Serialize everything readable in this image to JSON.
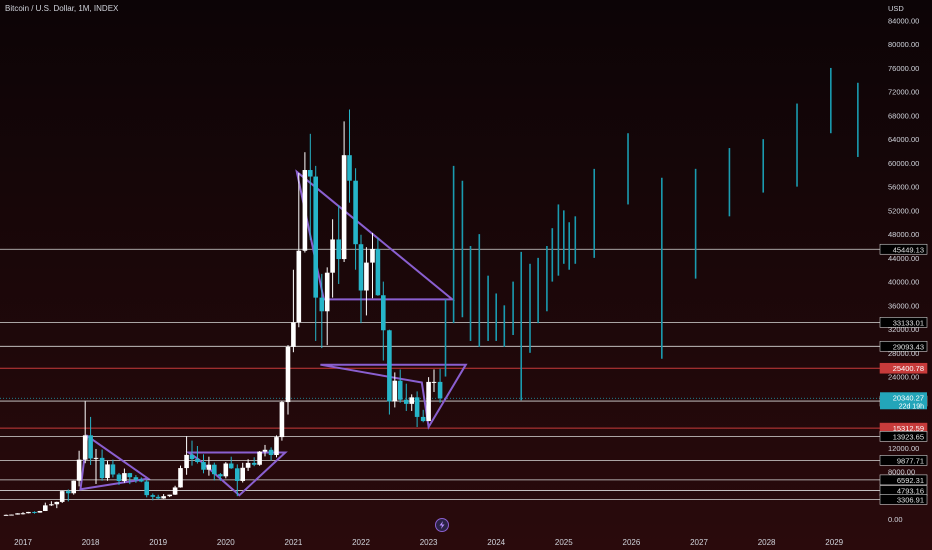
{
  "header": {
    "title": "Bitcoin / U.S. Dollar, 1M, INDEX"
  },
  "center_icon": "lightning-bolt-icon",
  "colors": {
    "background_top": "#0c0406",
    "background_bottom": "#2a0a0c",
    "up": "#ffffff",
    "down": "#26b5c9",
    "projection": "#1a9bb0",
    "pattern": "#8a5fd0",
    "level_line": "#d8d8d8",
    "red_level": "#c73b3b",
    "price_badge": "#23a5b9"
  },
  "chart_data": {
    "type": "candlestick",
    "title": "Bitcoin / U.S. Dollar, 1M, INDEX",
    "currency": "USD",
    "y_range": [
      0,
      86000
    ],
    "y_ticks": [
      "84000.00",
      "80000.00",
      "76000.00",
      "72000.00",
      "68000.00",
      "64000.00",
      "60000.00",
      "56000.00",
      "52000.00",
      "48000.00",
      "44000.00",
      "40000.00",
      "36000.00",
      "32000.00",
      "28000.00",
      "24000.00",
      "12000.00",
      "8000.00",
      "0.00"
    ],
    "x_ticks": [
      "2017",
      "2018",
      "2019",
      "2020",
      "2021",
      "2022",
      "2023",
      "2024",
      "2025",
      "2026",
      "2027",
      "2028",
      "2029"
    ],
    "x_range": [
      2016.7,
      2029.5
    ],
    "candles": [
      {
        "t": 2016.75,
        "o": 600,
        "h": 750,
        "l": 580,
        "c": 700
      },
      {
        "t": 2016.83,
        "o": 700,
        "h": 760,
        "l": 680,
        "c": 745
      },
      {
        "t": 2016.92,
        "o": 745,
        "h": 970,
        "l": 740,
        "c": 960
      },
      {
        "t": 2017.0,
        "o": 960,
        "h": 1150,
        "l": 760,
        "c": 970
      },
      {
        "t": 2017.08,
        "o": 970,
        "h": 1200,
        "l": 950,
        "c": 1190
      },
      {
        "t": 2017.17,
        "o": 1190,
        "h": 1290,
        "l": 900,
        "c": 1080
      },
      {
        "t": 2017.25,
        "o": 1080,
        "h": 1370,
        "l": 1060,
        "c": 1350
      },
      {
        "t": 2017.33,
        "o": 1350,
        "h": 2760,
        "l": 1340,
        "c": 2300
      },
      {
        "t": 2017.42,
        "o": 2300,
        "h": 2990,
        "l": 2200,
        "c": 2480
      },
      {
        "t": 2017.5,
        "o": 2480,
        "h": 2920,
        "l": 1830,
        "c": 2880
      },
      {
        "t": 2017.58,
        "o": 2880,
        "h": 4760,
        "l": 2700,
        "c": 4700
      },
      {
        "t": 2017.67,
        "o": 4700,
        "h": 4980,
        "l": 2970,
        "c": 4340
      },
      {
        "t": 2017.75,
        "o": 4340,
        "h": 6470,
        "l": 4110,
        "c": 6450
      },
      {
        "t": 2017.83,
        "o": 6450,
        "h": 11500,
        "l": 5500,
        "c": 10000
      },
      {
        "t": 2017.92,
        "o": 10000,
        "h": 19800,
        "l": 9400,
        "c": 14100
      },
      {
        "t": 2018.0,
        "o": 14100,
        "h": 17200,
        "l": 9100,
        "c": 10200
      },
      {
        "t": 2018.08,
        "o": 10200,
        "h": 11800,
        "l": 5900,
        "c": 10300
      },
      {
        "t": 2018.17,
        "o": 10300,
        "h": 11700,
        "l": 6450,
        "c": 6900
      },
      {
        "t": 2018.25,
        "o": 6900,
        "h": 9800,
        "l": 6450,
        "c": 9200
      },
      {
        "t": 2018.33,
        "o": 9200,
        "h": 10000,
        "l": 7000,
        "c": 7500
      },
      {
        "t": 2018.42,
        "o": 7500,
        "h": 7760,
        "l": 5750,
        "c": 6400
      },
      {
        "t": 2018.5,
        "o": 6400,
        "h": 8500,
        "l": 6100,
        "c": 7730
      },
      {
        "t": 2018.58,
        "o": 7730,
        "h": 7770,
        "l": 5880,
        "c": 7040
      },
      {
        "t": 2018.67,
        "o": 7040,
        "h": 7400,
        "l": 6100,
        "c": 6620
      },
      {
        "t": 2018.75,
        "o": 6620,
        "h": 7000,
        "l": 6200,
        "c": 6320
      },
      {
        "t": 2018.83,
        "o": 6320,
        "h": 6620,
        "l": 3650,
        "c": 4020
      },
      {
        "t": 2018.92,
        "o": 4020,
        "h": 4300,
        "l": 3150,
        "c": 3740
      },
      {
        "t": 2019.0,
        "o": 3740,
        "h": 4080,
        "l": 3350,
        "c": 3460
      },
      {
        "t": 2019.08,
        "o": 3460,
        "h": 4200,
        "l": 3400,
        "c": 3850
      },
      {
        "t": 2019.17,
        "o": 3850,
        "h": 4100,
        "l": 3700,
        "c": 4100
      },
      {
        "t": 2019.25,
        "o": 4100,
        "h": 5600,
        "l": 4050,
        "c": 5320
      },
      {
        "t": 2019.33,
        "o": 5320,
        "h": 9000,
        "l": 5280,
        "c": 8580
      },
      {
        "t": 2019.42,
        "o": 8580,
        "h": 13900,
        "l": 7450,
        "c": 10800
      },
      {
        "t": 2019.5,
        "o": 10800,
        "h": 13200,
        "l": 9000,
        "c": 10100
      },
      {
        "t": 2019.58,
        "o": 10100,
        "h": 12300,
        "l": 9350,
        "c": 9600
      },
      {
        "t": 2019.67,
        "o": 9600,
        "h": 10900,
        "l": 7700,
        "c": 8300
      },
      {
        "t": 2019.75,
        "o": 8300,
        "h": 10500,
        "l": 7300,
        "c": 9150
      },
      {
        "t": 2019.83,
        "o": 9150,
        "h": 9500,
        "l": 6500,
        "c": 7550
      },
      {
        "t": 2019.92,
        "o": 7550,
        "h": 7750,
        "l": 6430,
        "c": 7190
      },
      {
        "t": 2020.0,
        "o": 7190,
        "h": 9580,
        "l": 6850,
        "c": 9350
      },
      {
        "t": 2020.08,
        "o": 9350,
        "h": 10500,
        "l": 8450,
        "c": 8540
      },
      {
        "t": 2020.17,
        "o": 8540,
        "h": 9200,
        "l": 3850,
        "c": 6410
      },
      {
        "t": 2020.25,
        "o": 6410,
        "h": 9470,
        "l": 6150,
        "c": 8630
      },
      {
        "t": 2020.33,
        "o": 8630,
        "h": 10070,
        "l": 8100,
        "c": 9450
      },
      {
        "t": 2020.42,
        "o": 9450,
        "h": 10400,
        "l": 8900,
        "c": 9140
      },
      {
        "t": 2020.5,
        "o": 9140,
        "h": 11450,
        "l": 8980,
        "c": 11350
      },
      {
        "t": 2020.58,
        "o": 11350,
        "h": 12480,
        "l": 10550,
        "c": 11660
      },
      {
        "t": 2020.67,
        "o": 11660,
        "h": 12070,
        "l": 9880,
        "c": 10780
      },
      {
        "t": 2020.75,
        "o": 10780,
        "h": 14100,
        "l": 10380,
        "c": 13800
      },
      {
        "t": 2020.83,
        "o": 13800,
        "h": 19900,
        "l": 13200,
        "c": 19700
      },
      {
        "t": 2020.92,
        "o": 19700,
        "h": 29300,
        "l": 17600,
        "c": 29000
      },
      {
        "t": 2021.0,
        "o": 29000,
        "h": 42000,
        "l": 28100,
        "c": 33100
      },
      {
        "t": 2021.08,
        "o": 33100,
        "h": 58300,
        "l": 32300,
        "c": 45200
      },
      {
        "t": 2021.17,
        "o": 45200,
        "h": 61800,
        "l": 44900,
        "c": 58800
      },
      {
        "t": 2021.25,
        "o": 58800,
        "h": 64900,
        "l": 47000,
        "c": 57700
      },
      {
        "t": 2021.33,
        "o": 57700,
        "h": 59500,
        "l": 30000,
        "c": 37300
      },
      {
        "t": 2021.42,
        "o": 37300,
        "h": 41300,
        "l": 28800,
        "c": 35000
      },
      {
        "t": 2021.5,
        "o": 35000,
        "h": 42400,
        "l": 29300,
        "c": 41500
      },
      {
        "t": 2021.58,
        "o": 41500,
        "h": 50500,
        "l": 37300,
        "c": 47100
      },
      {
        "t": 2021.67,
        "o": 47100,
        "h": 52900,
        "l": 39600,
        "c": 43800
      },
      {
        "t": 2021.75,
        "o": 43800,
        "h": 67000,
        "l": 43300,
        "c": 61300
      },
      {
        "t": 2021.83,
        "o": 61300,
        "h": 69000,
        "l": 53300,
        "c": 57000
      },
      {
        "t": 2021.92,
        "o": 57000,
        "h": 59100,
        "l": 42000,
        "c": 46300
      },
      {
        "t": 2022.0,
        "o": 46300,
        "h": 47900,
        "l": 33000,
        "c": 38500
      },
      {
        "t": 2022.08,
        "o": 38500,
        "h": 45800,
        "l": 34300,
        "c": 43200
      },
      {
        "t": 2022.17,
        "o": 43200,
        "h": 48200,
        "l": 37200,
        "c": 45500
      },
      {
        "t": 2022.25,
        "o": 45500,
        "h": 47400,
        "l": 37600,
        "c": 37700
      },
      {
        "t": 2022.33,
        "o": 37700,
        "h": 40000,
        "l": 26700,
        "c": 31800
      },
      {
        "t": 2022.42,
        "o": 31800,
        "h": 31900,
        "l": 17600,
        "c": 19800
      },
      {
        "t": 2022.5,
        "o": 19800,
        "h": 24700,
        "l": 18800,
        "c": 23300
      },
      {
        "t": 2022.58,
        "o": 23300,
        "h": 25200,
        "l": 19600,
        "c": 20100
      },
      {
        "t": 2022.67,
        "o": 20100,
        "h": 22800,
        "l": 18200,
        "c": 19400
      },
      {
        "t": 2022.75,
        "o": 19400,
        "h": 21000,
        "l": 18200,
        "c": 20500
      },
      {
        "t": 2022.83,
        "o": 20500,
        "h": 21500,
        "l": 15500,
        "c": 17200
      },
      {
        "t": 2022.92,
        "o": 17200,
        "h": 18400,
        "l": 16300,
        "c": 16500
      },
      {
        "t": 2023.0,
        "o": 16500,
        "h": 23900,
        "l": 16500,
        "c": 23100
      },
      {
        "t": 2023.08,
        "o": 23100,
        "h": 25200,
        "l": 21400,
        "c": 23100
      },
      {
        "t": 2023.17,
        "o": 23100,
        "h": 25300,
        "l": 19600,
        "c": 20340
      }
    ],
    "projection_bars": [
      {
        "t": 2023.25,
        "h": 37000,
        "l": 24000
      },
      {
        "t": 2023.37,
        "h": 59500,
        "l": 33000
      },
      {
        "t": 2023.5,
        "h": 57000,
        "l": 34000
      },
      {
        "t": 2023.62,
        "h": 46000,
        "l": 30000
      },
      {
        "t": 2023.75,
        "h": 48000,
        "l": 29000
      },
      {
        "t": 2023.88,
        "h": 41000,
        "l": 30000
      },
      {
        "t": 2024.0,
        "h": 38000,
        "l": 30000
      },
      {
        "t": 2024.12,
        "h": 36000,
        "l": 29000
      },
      {
        "t": 2024.25,
        "h": 40000,
        "l": 31000
      },
      {
        "t": 2024.37,
        "h": 45000,
        "l": 20000
      },
      {
        "t": 2024.5,
        "h": 43000,
        "l": 28000
      },
      {
        "t": 2024.62,
        "h": 44000,
        "l": 33000
      },
      {
        "t": 2024.75,
        "h": 46000,
        "l": 35000
      },
      {
        "t": 2024.83,
        "h": 49000,
        "l": 40000
      },
      {
        "t": 2024.92,
        "h": 53000,
        "l": 41000
      },
      {
        "t": 2025.0,
        "h": 52000,
        "l": 43000
      },
      {
        "t": 2025.08,
        "h": 50000,
        "l": 42000
      },
      {
        "t": 2025.17,
        "h": 51000,
        "l": 43000
      },
      {
        "t": 2025.45,
        "h": 59000,
        "l": 44000
      },
      {
        "t": 2025.95,
        "h": 65000,
        "l": 53000
      },
      {
        "t": 2026.45,
        "h": 57500,
        "l": 27000
      },
      {
        "t": 2026.95,
        "h": 59000,
        "l": 40500
      },
      {
        "t": 2027.45,
        "h": 62500,
        "l": 51000
      },
      {
        "t": 2027.95,
        "h": 64000,
        "l": 55000
      },
      {
        "t": 2028.45,
        "h": 70000,
        "l": 56000
      },
      {
        "t": 2028.95,
        "h": 76000,
        "l": 65000
      },
      {
        "t": 2029.35,
        "h": 73500,
        "l": 61000
      }
    ],
    "levels": [
      {
        "value": 45449.13,
        "label": "45449.13",
        "style": "line"
      },
      {
        "value": 33133.01,
        "label": "33133.01",
        "style": "line"
      },
      {
        "value": 29093.43,
        "label": "29093.43",
        "style": "line"
      },
      {
        "value": 25400.78,
        "label": "25400.78",
        "style": "red"
      },
      {
        "value": 19872.65,
        "label": "19872.65",
        "style": "line"
      },
      {
        "value": 15312.59,
        "label": "15312.59",
        "style": "red"
      },
      {
        "value": 13923.65,
        "label": "13923.65",
        "style": "line"
      },
      {
        "value": 9877.71,
        "label": "9877.71",
        "style": "line"
      },
      {
        "value": 6592.31,
        "label": "6592.31",
        "style": "line"
      },
      {
        "value": 4793.16,
        "label": "4793.16",
        "style": "line"
      },
      {
        "value": 3306.91,
        "label": "3306.91",
        "style": "line"
      }
    ],
    "current_price": {
      "value": 20340.27,
      "label": "20340.27",
      "sublabel": "22d 19h"
    },
    "patterns": [
      [
        [
          2017.95,
          14000
        ],
        [
          2018.85,
          6800
        ],
        [
          2017.85,
          5000
        ]
      ],
      [
        [
          2019.45,
          11200
        ],
        [
          2020.88,
          11200
        ],
        [
          2020.2,
          4000
        ],
        [
          2019.6,
          10000
        ]
      ],
      [
        [
          2021.05,
          58500
        ],
        [
          2023.35,
          37000
        ],
        [
          2021.45,
          37000
        ]
      ],
      [
        [
          2021.4,
          26000
        ],
        [
          2023.55,
          26000
        ],
        [
          2023.0,
          15500
        ],
        [
          2022.9,
          23000
        ]
      ]
    ]
  }
}
